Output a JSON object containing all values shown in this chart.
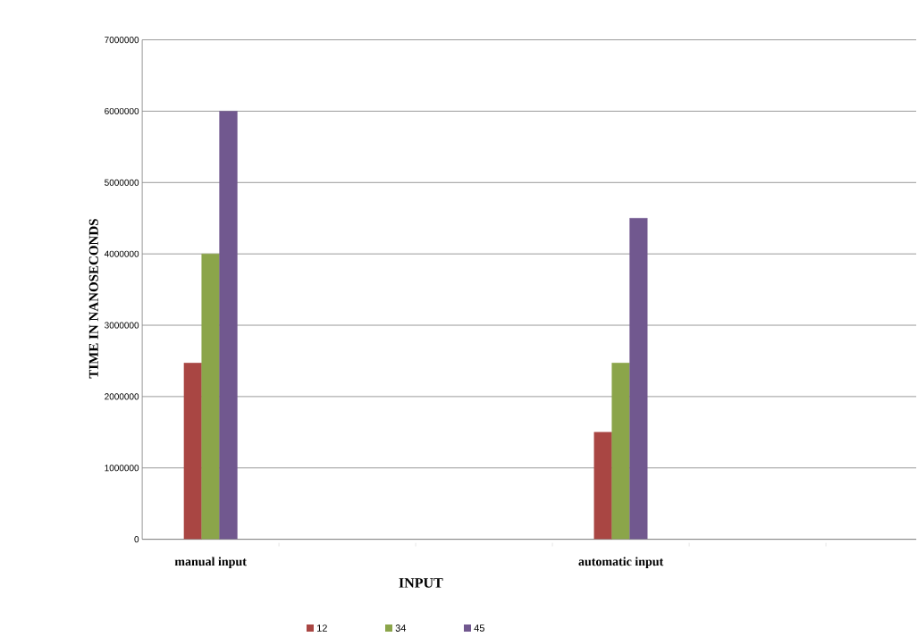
{
  "chart_data": {
    "type": "bar",
    "xlabel": "INPUT",
    "ylabel": "TIME IN NANOSECONDS",
    "categories": [
      "manual input",
      null,
      null,
      "automatic input",
      null,
      null
    ],
    "series": [
      {
        "name": "12",
        "color": "#a94643",
        "values": [
          2470000,
          null,
          null,
          1500000,
          null,
          null
        ]
      },
      {
        "name": "34",
        "color": "#8ba54a",
        "values": [
          4000000,
          null,
          null,
          2470000,
          null,
          null
        ]
      },
      {
        "name": "45",
        "color": "#71588f",
        "values": [
          6000000,
          null,
          null,
          4500000,
          null,
          null
        ]
      }
    ],
    "ylim": [
      0,
      7000000
    ],
    "yticks": [
      0,
      1000000,
      2000000,
      3000000,
      4000000,
      5000000,
      6000000,
      7000000
    ],
    "grid": "y",
    "legend": "bottom"
  }
}
